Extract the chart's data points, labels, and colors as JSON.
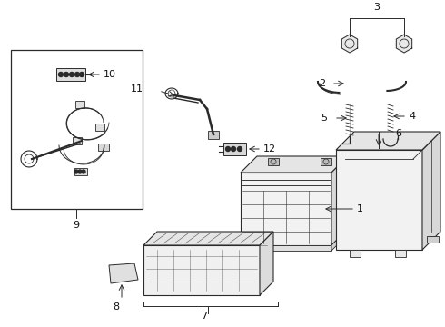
{
  "bg_color": "#ffffff",
  "line_color": "#2a2a2a",
  "text_color": "#111111",
  "fig_w": 4.9,
  "fig_h": 3.6,
  "dpi": 100
}
